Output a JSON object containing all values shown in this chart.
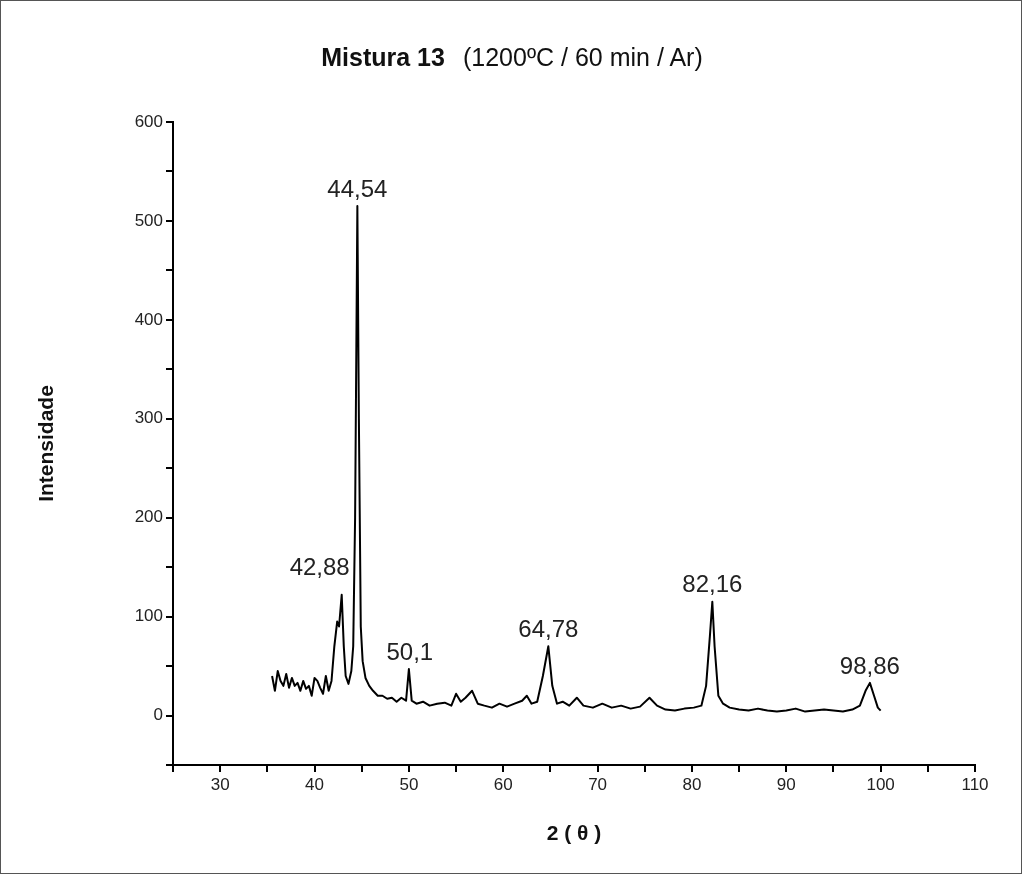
{
  "chart_data": {
    "type": "line",
    "title": "Mistura 13",
    "subtitle": "(1200ºC / 60 min / Ar)",
    "xlabel": "2 ( θ )",
    "ylabel": "Intensidade",
    "xlim": [
      25,
      110
    ],
    "xticks": [
      {
        "value": 25,
        "label": null
      },
      30,
      {
        "value": 35,
        "label": null
      },
      40,
      {
        "value": 45,
        "label": null
      },
      50,
      {
        "value": 55,
        "label": null
      },
      60,
      {
        "value": 65,
        "label": null
      },
      70,
      {
        "value": 75,
        "label": null
      },
      80,
      {
        "value": 85,
        "label": null
      },
      90,
      {
        "value": 95,
        "label": null
      },
      100,
      {
        "value": 105,
        "label": null
      },
      110
    ],
    "ylim": [
      -50,
      600
    ],
    "yticks": [
      {
        "value": -50,
        "label": null
      },
      0,
      {
        "value": 50,
        "label": null
      },
      100,
      {
        "value": 150,
        "label": null
      },
      200,
      {
        "value": 250,
        "label": null
      },
      300,
      {
        "value": 350,
        "label": null
      },
      400,
      {
        "value": 450,
        "label": null
      },
      500,
      {
        "value": 550,
        "label": null
      },
      600
    ],
    "grid": false,
    "legend": false,
    "marker": "none",
    "line_style": "solid",
    "series": [
      {
        "color": "#000000",
        "x": [
          35.5,
          35.8,
          36.1,
          36.4,
          36.7,
          37.0,
          37.3,
          37.6,
          37.9,
          38.2,
          38.5,
          38.8,
          39.1,
          39.4,
          39.7,
          40.0,
          40.3,
          40.6,
          40.9,
          41.2,
          41.5,
          41.8,
          42.1,
          42.4,
          42.6,
          42.88,
          43.1,
          43.3,
          43.6,
          43.9,
          44.1,
          44.3,
          44.54,
          44.7,
          44.9,
          45.1,
          45.4,
          45.8,
          46.2,
          46.7,
          47.2,
          47.7,
          48.2,
          48.7,
          49.2,
          49.7,
          50.0,
          50.3,
          50.8,
          51.5,
          52.2,
          53.0,
          53.8,
          54.5,
          55.0,
          55.5,
          56.0,
          56.7,
          57.3,
          58.0,
          58.8,
          59.6,
          60.4,
          61.2,
          62.0,
          62.5,
          63.0,
          63.6,
          64.2,
          64.78,
          65.2,
          65.7,
          66.3,
          67.0,
          67.8,
          68.5,
          69.5,
          70.5,
          71.5,
          72.5,
          73.5,
          74.5,
          75.5,
          76.3,
          77.2,
          78.2,
          79.2,
          80.2,
          81.0,
          81.5,
          81.9,
          82.16,
          82.4,
          82.8,
          83.3,
          84.0,
          85.0,
          86.0,
          87.0,
          88.0,
          89.0,
          90.0,
          91.0,
          92.0,
          93.0,
          94.0,
          95.0,
          96.0,
          97.0,
          97.8,
          98.4,
          98.86,
          99.3,
          99.7,
          100.0
        ],
        "values": [
          40,
          25,
          45,
          35,
          30,
          42,
          28,
          38,
          30,
          33,
          25,
          35,
          27,
          30,
          20,
          38,
          35,
          28,
          22,
          40,
          25,
          35,
          70,
          95,
          90,
          122,
          70,
          40,
          32,
          45,
          70,
          200,
          515,
          300,
          90,
          55,
          38,
          30,
          25,
          20,
          20,
          17,
          18,
          14,
          18,
          15,
          47,
          15,
          12,
          14,
          10,
          12,
          13,
          10,
          22,
          14,
          18,
          25,
          12,
          10,
          8,
          12,
          9,
          12,
          15,
          20,
          12,
          14,
          40,
          70,
          30,
          12,
          14,
          10,
          18,
          10,
          8,
          12,
          8,
          10,
          7,
          9,
          18,
          10,
          6,
          5,
          7,
          8,
          10,
          30,
          80,
          115,
          70,
          20,
          12,
          8,
          6,
          5,
          7,
          5,
          4,
          5,
          7,
          4,
          5,
          6,
          5,
          4,
          6,
          10,
          25,
          33,
          20,
          8,
          5
        ]
      }
    ],
    "annotations": [
      {
        "text": "42,88",
        "x": 42.88,
        "y": 122
      },
      {
        "text": "44,54",
        "x": 44.54,
        "y": 515
      },
      {
        "text": "50,1",
        "x": 50.1,
        "y": 47
      },
      {
        "text": "64,78",
        "x": 64.78,
        "y": 70
      },
      {
        "text": "82,16",
        "x": 82.16,
        "y": 115
      },
      {
        "text": "98,86",
        "x": 98.86,
        "y": 33
      }
    ]
  }
}
